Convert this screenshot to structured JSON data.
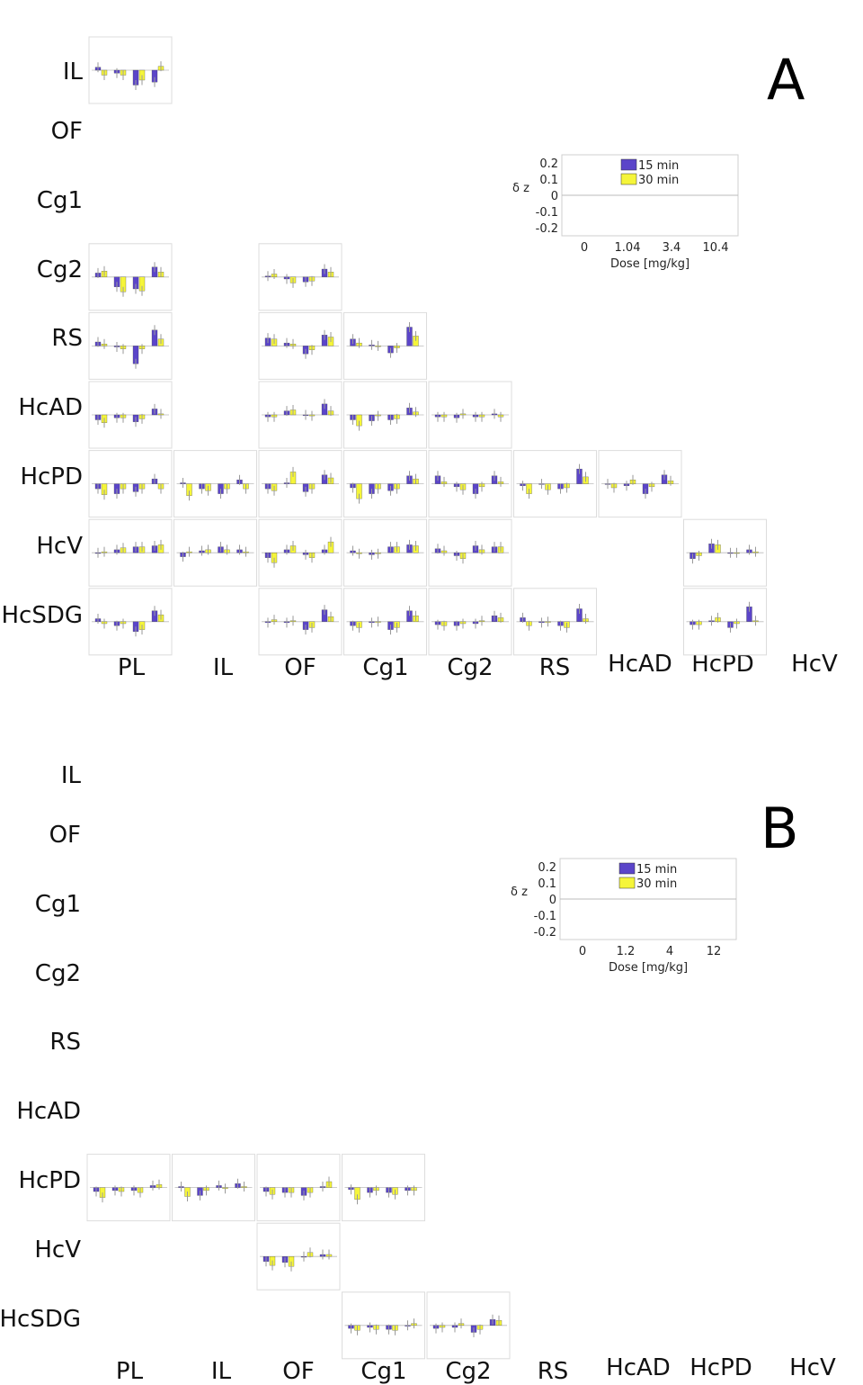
{
  "legend_labels": [
    "15 min",
    "30 min"
  ],
  "colors": {
    "s15": "#5b45c9",
    "s30": "#f5f53a",
    "err": "#9a9a9a",
    "frame": "#dcdcdc",
    "zero": "#bbbbbb"
  },
  "chart_data": [
    {
      "panel": "A",
      "type": "bar",
      "rows": [
        "IL",
        "OF",
        "Cg1",
        "Cg2",
        "RS",
        "HcAD",
        "HcPD",
        "HcV",
        "HcSDG"
      ],
      "cols": [
        "PL",
        "IL",
        "OF",
        "Cg1",
        "Cg2",
        "RS",
        "HcAD",
        "HcPD",
        "HcV"
      ],
      "key": {
        "ylabel": "δ z",
        "yticks": [
          "0.2",
          "0.1",
          "0",
          "-0.1",
          "-0.2"
        ],
        "xlabel": "Dose [mg/kg]",
        "xticks": [
          "0",
          "1.04",
          "3.4",
          "10.4"
        ],
        "ylim": [
          -0.2,
          0.2
        ]
      },
      "cells": [
        {
          "r": 0,
          "c": 0,
          "v15": [
            0.03,
            -0.03,
            -0.15,
            -0.12
          ],
          "v30": [
            -0.05,
            -0.05,
            -0.1,
            0.04
          ]
        },
        {
          "r": 3,
          "c": 0,
          "v15": [
            0.04,
            -0.1,
            -0.12,
            0.1
          ],
          "v30": [
            0.06,
            -0.15,
            -0.14,
            0.05
          ]
        },
        {
          "r": 3,
          "c": 2,
          "v15": [
            0.01,
            -0.02,
            -0.05,
            0.08
          ],
          "v30": [
            0.03,
            -0.06,
            -0.04,
            0.05
          ]
        },
        {
          "r": 4,
          "c": 0,
          "v15": [
            0.04,
            -0.01,
            -0.18,
            0.16
          ],
          "v30": [
            0.02,
            -0.03,
            -0.03,
            0.07
          ]
        },
        {
          "r": 4,
          "c": 2,
          "v15": [
            0.08,
            0.03,
            -0.08,
            0.11
          ],
          "v30": [
            0.07,
            0.02,
            -0.04,
            0.09
          ]
        },
        {
          "r": 4,
          "c": 3,
          "v15": [
            0.07,
            0.01,
            -0.07,
            0.19
          ],
          "v30": [
            0.03,
            0.0,
            -0.02,
            0.1
          ]
        },
        {
          "r": 5,
          "c": 0,
          "v15": [
            -0.05,
            -0.03,
            -0.07,
            0.06
          ],
          "v30": [
            -0.08,
            -0.03,
            -0.04,
            0.01
          ]
        },
        {
          "r": 5,
          "c": 2,
          "v15": [
            -0.02,
            0.04,
            0.0,
            0.11
          ],
          "v30": [
            -0.02,
            0.05,
            -0.01,
            0.04
          ]
        },
        {
          "r": 5,
          "c": 3,
          "v15": [
            -0.05,
            -0.06,
            -0.05,
            0.07
          ],
          "v30": [
            -0.11,
            -0.01,
            -0.04,
            0.03
          ]
        },
        {
          "r": 5,
          "c": 4,
          "v15": [
            -0.02,
            -0.03,
            -0.02,
            0.01
          ],
          "v30": [
            -0.02,
            0.01,
            -0.02,
            -0.02
          ]
        },
        {
          "r": 6,
          "c": 0,
          "v15": [
            -0.05,
            -0.1,
            -0.08,
            0.05
          ],
          "v30": [
            -0.11,
            -0.05,
            -0.05,
            -0.05
          ]
        },
        {
          "r": 6,
          "c": 1,
          "v15": [
            0.01,
            -0.05,
            -0.1,
            0.04
          ],
          "v30": [
            -0.12,
            -0.07,
            -0.05,
            -0.05
          ]
        },
        {
          "r": 6,
          "c": 2,
          "v15": [
            -0.05,
            0.01,
            -0.08,
            0.09
          ],
          "v30": [
            -0.07,
            0.12,
            -0.05,
            0.06
          ]
        },
        {
          "r": 6,
          "c": 3,
          "v15": [
            -0.04,
            -0.1,
            -0.07,
            0.08
          ],
          "v30": [
            -0.15,
            -0.05,
            -0.05,
            0.05
          ]
        },
        {
          "r": 6,
          "c": 4,
          "v15": [
            0.08,
            -0.03,
            -0.1,
            0.08
          ],
          "v30": [
            0.02,
            -0.06,
            -0.03,
            0.02
          ]
        },
        {
          "r": 6,
          "c": 5,
          "v15": [
            -0.02,
            0.0,
            -0.05,
            0.15
          ],
          "v30": [
            -0.1,
            -0.06,
            -0.04,
            0.07
          ]
        },
        {
          "r": 6,
          "c": 6,
          "v15": [
            0.0,
            -0.02,
            -0.1,
            0.09
          ],
          "v30": [
            -0.04,
            0.04,
            -0.03,
            0.03
          ]
        },
        {
          "r": 7,
          "c": 0,
          "v15": [
            0.0,
            0.03,
            0.06,
            0.07
          ],
          "v30": [
            0.01,
            0.05,
            0.06,
            0.08
          ]
        },
        {
          "r": 7,
          "c": 1,
          "v15": [
            -0.04,
            0.02,
            0.06,
            0.03
          ],
          "v30": [
            0.01,
            0.03,
            0.03,
            0.01
          ]
        },
        {
          "r": 7,
          "c": 2,
          "v15": [
            -0.05,
            0.03,
            -0.02,
            0.03
          ],
          "v30": [
            -0.1,
            0.07,
            -0.05,
            0.11
          ]
        },
        {
          "r": 7,
          "c": 3,
          "v15": [
            0.02,
            -0.02,
            0.06,
            0.08
          ],
          "v30": [
            -0.01,
            -0.01,
            0.06,
            0.07
          ]
        },
        {
          "r": 7,
          "c": 4,
          "v15": [
            0.04,
            -0.03,
            0.07,
            0.06
          ],
          "v30": [
            0.02,
            -0.06,
            0.03,
            0.06
          ]
        },
        {
          "r": 7,
          "c": 7,
          "v15": [
            -0.06,
            0.09,
            0.0,
            0.03
          ],
          "v30": [
            -0.03,
            0.08,
            0.0,
            0.01
          ]
        },
        {
          "r": 8,
          "c": 0,
          "v15": [
            0.03,
            -0.04,
            -0.1,
            0.11
          ],
          "v30": [
            -0.02,
            -0.02,
            -0.08,
            0.07
          ]
        },
        {
          "r": 8,
          "c": 2,
          "v15": [
            -0.01,
            -0.01,
            -0.08,
            0.12
          ],
          "v30": [
            0.02,
            0.01,
            -0.06,
            0.05
          ]
        },
        {
          "r": 8,
          "c": 3,
          "v15": [
            -0.04,
            -0.01,
            -0.08,
            0.11
          ],
          "v30": [
            -0.06,
            0.0,
            -0.06,
            0.06
          ]
        },
        {
          "r": 8,
          "c": 4,
          "v15": [
            -0.03,
            -0.04,
            -0.02,
            0.06
          ],
          "v30": [
            -0.04,
            -0.02,
            0.01,
            0.04
          ]
        },
        {
          "r": 8,
          "c": 5,
          "v15": [
            0.04,
            -0.01,
            -0.04,
            0.13
          ],
          "v30": [
            -0.04,
            0.0,
            -0.06,
            0.03
          ]
        },
        {
          "r": 8,
          "c": 7,
          "v15": [
            -0.03,
            0.01,
            -0.06,
            0.15
          ],
          "v30": [
            -0.03,
            0.04,
            -0.02,
            0.01
          ]
        }
      ]
    },
    {
      "panel": "B",
      "type": "bar",
      "rows": [
        "IL",
        "OF",
        "Cg1",
        "Cg2",
        "RS",
        "HcAD",
        "HcPD",
        "HcV",
        "HcSDG"
      ],
      "cols": [
        "PL",
        "IL",
        "OF",
        "Cg1",
        "Cg2",
        "RS",
        "HcAD",
        "HcPD",
        "HcV"
      ],
      "key": {
        "ylabel": "δ z",
        "yticks": [
          "0.2",
          "0.1",
          "0",
          "-0.1",
          "-0.2"
        ],
        "xlabel": "Dose [mg/kg]",
        "xticks": [
          "0",
          "1.2",
          "4",
          "12"
        ],
        "ylim": [
          -0.2,
          0.2
        ]
      },
      "cells": [
        {
          "r": 6,
          "c": 0,
          "v15": [
            -0.04,
            -0.03,
            -0.03,
            0.02
          ],
          "v30": [
            -0.1,
            -0.04,
            -0.05,
            0.03
          ]
        },
        {
          "r": 6,
          "c": 1,
          "v15": [
            0.01,
            -0.08,
            0.02,
            0.04
          ],
          "v30": [
            -0.09,
            -0.03,
            -0.01,
            0.01
          ]
        },
        {
          "r": 6,
          "c": 2,
          "v15": [
            -0.04,
            -0.05,
            -0.08,
            0.01
          ],
          "v30": [
            -0.07,
            -0.05,
            -0.05,
            0.06
          ]
        },
        {
          "r": 6,
          "c": 3,
          "v15": [
            -0.02,
            -0.05,
            -0.05,
            -0.03
          ],
          "v30": [
            -0.12,
            -0.03,
            -0.07,
            -0.03
          ]
        },
        {
          "r": 7,
          "c": 2,
          "v15": [
            -0.05,
            -0.06,
            0.0,
            0.02
          ],
          "v30": [
            -0.09,
            -0.1,
            0.04,
            0.02
          ]
        },
        {
          "r": 8,
          "c": 3,
          "v15": [
            -0.03,
            -0.02,
            -0.04,
            0.0
          ],
          "v30": [
            -0.05,
            -0.04,
            -0.05,
            0.02
          ]
        },
        {
          "r": 8,
          "c": 4,
          "v15": [
            -0.03,
            -0.02,
            -0.07,
            0.06
          ],
          "v30": [
            -0.02,
            0.02,
            -0.04,
            0.05
          ]
        }
      ]
    }
  ]
}
